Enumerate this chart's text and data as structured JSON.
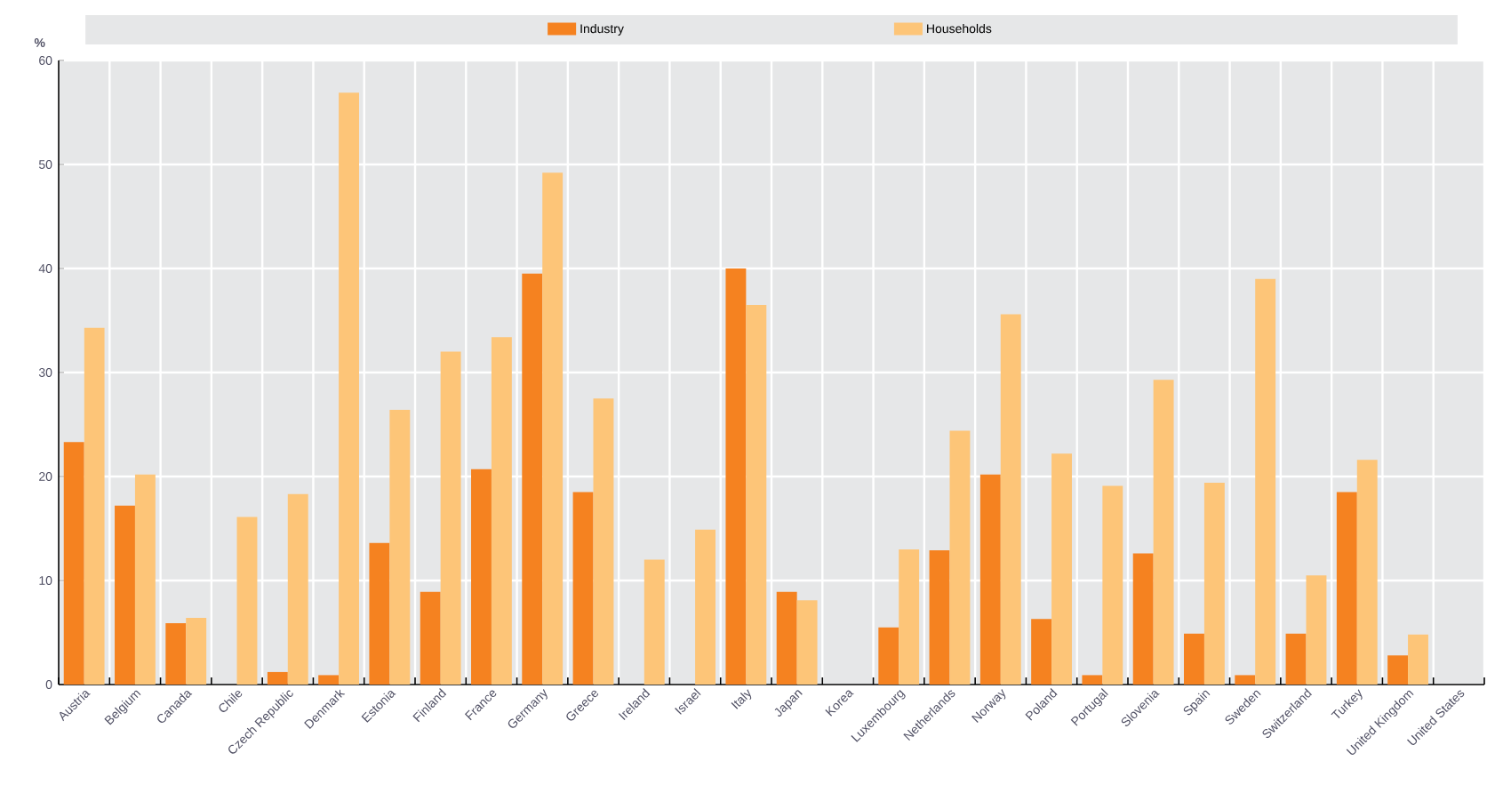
{
  "chart_data": {
    "type": "bar",
    "ylabel": "%",
    "categories": [
      "Austria",
      "Belgium",
      "Canada",
      "Chile",
      "Czech Republic",
      "Denmark",
      "Estonia",
      "Finland",
      "France",
      "Germany",
      "Greece",
      "Ireland",
      "Israel",
      "Italy",
      "Japan",
      "Korea",
      "Luxembourg",
      "Netherlands",
      "Norway",
      "Poland",
      "Portugal",
      "Slovenia",
      "Spain",
      "Sweden",
      "Switzerland",
      "Turkey",
      "United Kingdom",
      "United States"
    ],
    "series": [
      {
        "name": "Industry",
        "color": "#f58220",
        "values": [
          23.3,
          17.2,
          5.9,
          null,
          1.2,
          0.9,
          13.6,
          8.9,
          20.7,
          39.5,
          18.5,
          null,
          null,
          40.0,
          8.9,
          null,
          5.5,
          12.9,
          20.2,
          6.3,
          0.9,
          12.6,
          4.9,
          0.9,
          4.9,
          18.5,
          2.8,
          null
        ]
      },
      {
        "name": "Households",
        "color": "#fdc578",
        "values": [
          34.3,
          20.2,
          6.4,
          16.1,
          18.3,
          56.9,
          26.4,
          32.0,
          33.4,
          49.2,
          27.5,
          12.0,
          14.9,
          36.5,
          8.1,
          null,
          13.0,
          24.4,
          35.6,
          22.2,
          19.1,
          29.3,
          19.4,
          39.0,
          10.5,
          21.6,
          4.8,
          null
        ]
      }
    ],
    "ylim": [
      0,
      60
    ],
    "yticks": [
      0,
      10,
      20,
      30,
      40,
      50,
      60
    ],
    "grid": true,
    "legend": "top"
  }
}
